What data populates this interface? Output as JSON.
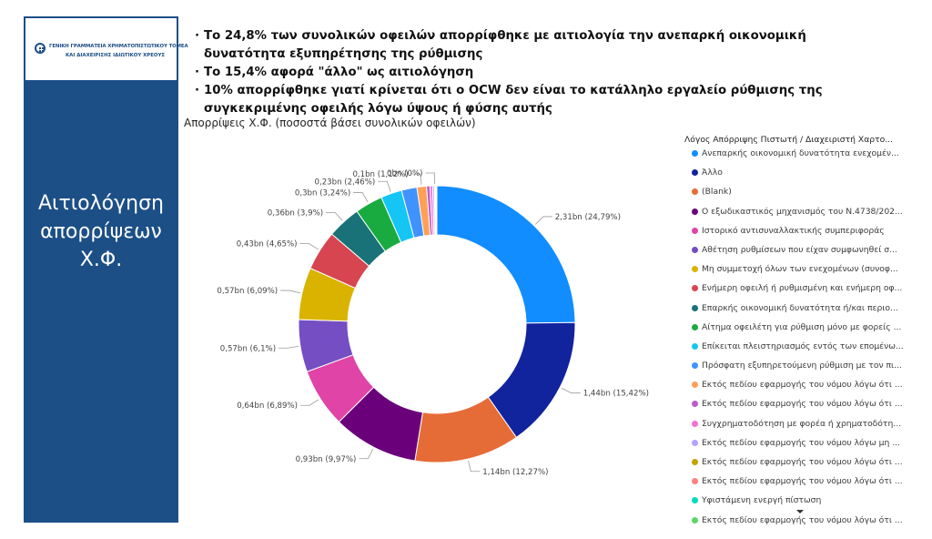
{
  "logo": {
    "line1": "ΓΕΝΙΚΗ ΓΡΑΜΜΑΤΕΙΑ ΧΡΗΜΑΤΟΠΙΣΤΩΤΙΚΟΥ ΤΟΜΕΑ",
    "line2": "ΚΑΙ ΔΙΑΧΕΙΡΙΣΗΣ ΙΔΙΩΤΙΚΟΥ ΧΡΕΟΥΣ"
  },
  "sidebar": {
    "title_line1": "Αιτιολόγηση",
    "title_line2": "απορρίψεων",
    "title_line3": "Χ.Φ."
  },
  "bullets": [
    "Το 24,8% των συνολικών οφειλών απορρίφθηκε με αιτιολογία την ανεπαρκή οικονομική δυνατότητα εξυπηρέτησης της ρύθμισης",
    "Το 15,4% αφορά \"άλλο\" ως αιτιολόγηση",
    "10% απορρίφθηκε γιατί κρίνεται ότι ο OCW δεν είναι το κατάλληλο εργαλείο ρύθμισης της συγκεκριμένης οφειλής λόγω ύψους ή φύσης αυτής"
  ],
  "chart_data": {
    "type": "pie",
    "title": "Απορρίψεις Χ.Φ. (ποσοστά βάσει συνολικών οφειλών)",
    "legend_title": "Λόγος Απόρριψης Πιστωτή / Διαχειριστή Χαρτο...",
    "legend_position": "right",
    "slices": [
      {
        "label": "Ανεπαρκής οικονομική δυνατότητα ενεχομέν...",
        "data_label": "2,31bn (24,79%)",
        "value": 2.31,
        "percent": 24.79,
        "color": "#118dff"
      },
      {
        "label": "Άλλο",
        "data_label": "1,44bn (15,42%)",
        "value": 1.44,
        "percent": 15.42,
        "color": "#12239e"
      },
      {
        "label": "(Blank)",
        "data_label": "1,14bn (12,27%)",
        "value": 1.14,
        "percent": 12.27,
        "color": "#e66c37"
      },
      {
        "label": "Ο εξωδικαστικός μηχανισμός του Ν.4738/202...",
        "data_label": "0,93bn (9,97%)",
        "value": 0.93,
        "percent": 9.97,
        "color": "#6b007b"
      },
      {
        "label": "Ιστορικό αντισυναλλακτικής συμπεριφοράς",
        "data_label": "0,64bn (6,89%)",
        "value": 0.64,
        "percent": 6.89,
        "color": "#e044a7"
      },
      {
        "label": "Αθέτηση ρυθμίσεων που είχαν συμφωνηθεί σ...",
        "data_label": "0,57bn (6,1%)",
        "value": 0.57,
        "percent": 6.1,
        "color": "#744ec2"
      },
      {
        "label": "Μη συμμετοχή όλων των ενεχομένων (συνοφ...",
        "data_label": "0,57bn (6,09%)",
        "value": 0.57,
        "percent": 6.09,
        "color": "#d9b300"
      },
      {
        "label": "Ενήμερη οφειλή ή ρυθμισμένη και ενήμερη οφ...",
        "data_label": "0,43bn (4,65%)",
        "value": 0.43,
        "percent": 4.65,
        "color": "#d64550"
      },
      {
        "label": "Επαρκής οικονομική δυνατότητα ή/και περιο...",
        "data_label": "0,36bn (3,9%)",
        "value": 0.36,
        "percent": 3.9,
        "color": "#197278"
      },
      {
        "label": "Αίτημα οφειλέτη για ρύθμιση μόνο με φορείς ...",
        "data_label": "0,3bn (3,24%)",
        "value": 0.3,
        "percent": 3.24,
        "color": "#1aab40"
      },
      {
        "label": "Επίκειται πλειστηριασμός εντός των επομένω...",
        "data_label": "0,23bn (2,46%)",
        "value": 0.23,
        "percent": 2.46,
        "color": "#15c6f4"
      },
      {
        "label": "Πρόσφατη εξυπηρετούμενη ρύθμιση με τον πι...",
        "data_label": "",
        "value": 0.17,
        "percent": 1.8,
        "color": "#4092ff"
      },
      {
        "label": "Εκτός πεδίου εφαρμογής του νόμου λόγω ότι ...",
        "data_label": "0,1bn (1,12%)",
        "value": 0.1,
        "percent": 1.12,
        "color": "#ffa058"
      },
      {
        "label": "Εκτός πεδίου εφαρμογής του νόμου λόγω ότι ...",
        "data_label": "",
        "value": 0.04,
        "percent": 0.4,
        "color": "#be5dc9"
      },
      {
        "label": "Συγχρηματοδότηση με φορέα ή χρηματοδότη...",
        "data_label": "",
        "value": 0.03,
        "percent": 0.3,
        "color": "#f472d0"
      },
      {
        "label": "Εκτός πεδίου εφαρμογής του νόμου λόγω μη ...",
        "data_label": "",
        "value": 0.02,
        "percent": 0.2,
        "color": "#b5a1ff"
      },
      {
        "label": "Εκτός πεδίου εφαρμογής του νόμου λόγω ότι ...",
        "data_label": "0bn (0%)",
        "value": 0.0,
        "percent": 0.1,
        "color": "#c4a200"
      },
      {
        "label": "Εκτός πεδίου εφαρμογής του νόμου λόγω ότι ...",
        "data_label": "",
        "value": 0.0,
        "percent": 0.08,
        "color": "#ff8080"
      },
      {
        "label": "Υφιστάμενη ενεργή πίστωση",
        "data_label": "",
        "value": 0.0,
        "percent": 0.06,
        "color": "#00dbbc"
      },
      {
        "label": "Εκτός πεδίου εφαρμογής του νόμου λόγω ότι ...",
        "data_label": "",
        "value": 0.0,
        "percent": 0.05,
        "color": "#5bd667"
      }
    ]
  }
}
